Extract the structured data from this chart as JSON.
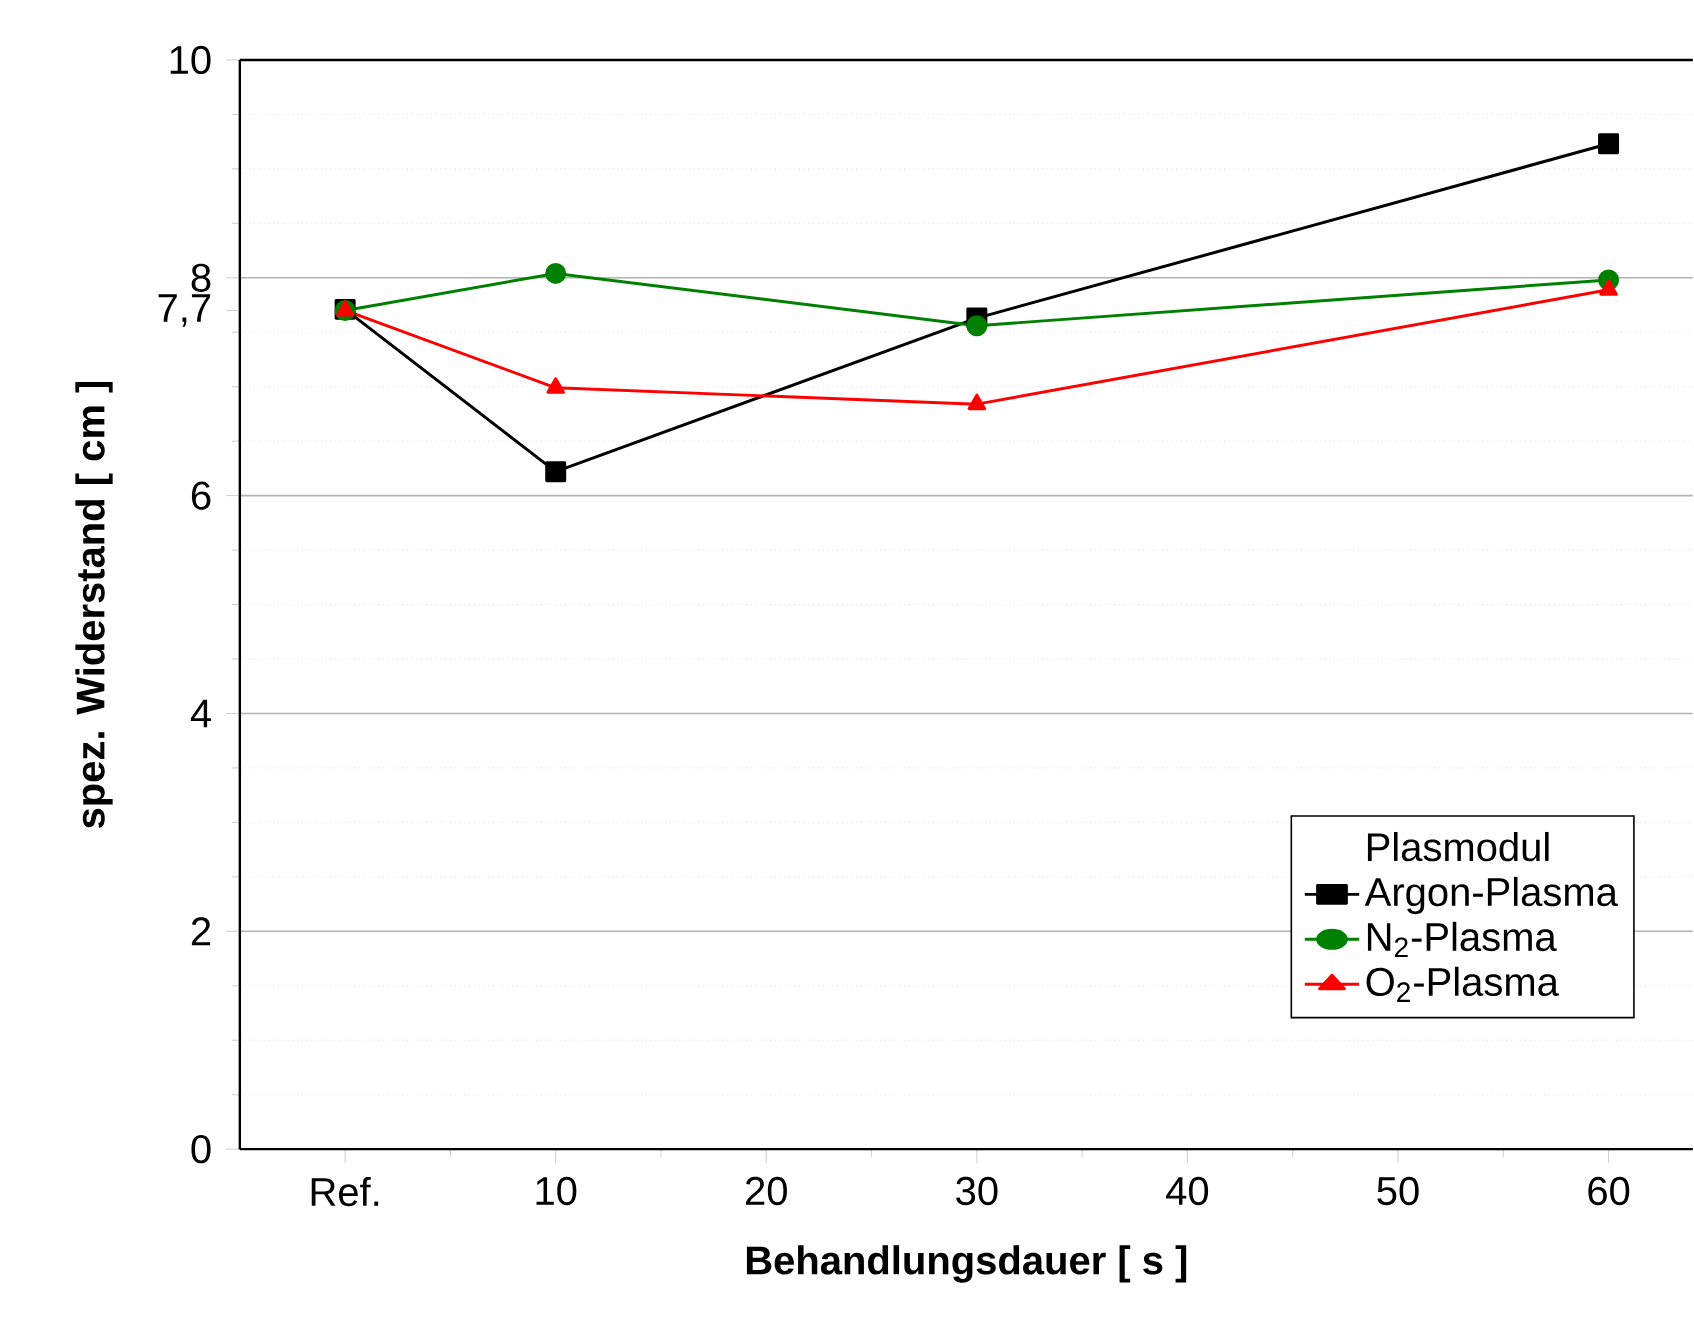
{
  "chart_data": {
    "type": "line",
    "xlabel": "Behandlungsdauer [ s ]",
    "ylabel": "spez. Widerstand [    cm ]",
    "legend_title": "Plasmodul",
    "x": [
      0,
      10,
      30,
      60
    ],
    "xlim": [
      -5,
      64
    ],
    "xticks": [
      {
        "value": 0,
        "label": "Ref."
      },
      10,
      20,
      30,
      40,
      50,
      60
    ],
    "ylim": [
      0,
      10
    ],
    "yticks": [
      0,
      2,
      4,
      6,
      {
        "value": 7.7,
        "label": "7,7"
      },
      8,
      10
    ],
    "grid": "y",
    "legend": "bottom right",
    "series": [
      {
        "name": "Argon-Plasma",
        "color": "#000000",
        "marker": "square",
        "values": [
          7.71,
          6.22,
          7.63,
          9.23
        ]
      },
      {
        "name": "N$_{2}$-Plasma",
        "color": "#008000",
        "marker": "circle",
        "values": [
          7.7,
          8.04,
          7.56,
          7.98
        ]
      },
      {
        "name": "O$_{2}$-Plasma",
        "color": "#ff0000",
        "marker": "triangle",
        "values": [
          7.7,
          6.99,
          6.84,
          7.89
        ]
      }
    ]
  }
}
